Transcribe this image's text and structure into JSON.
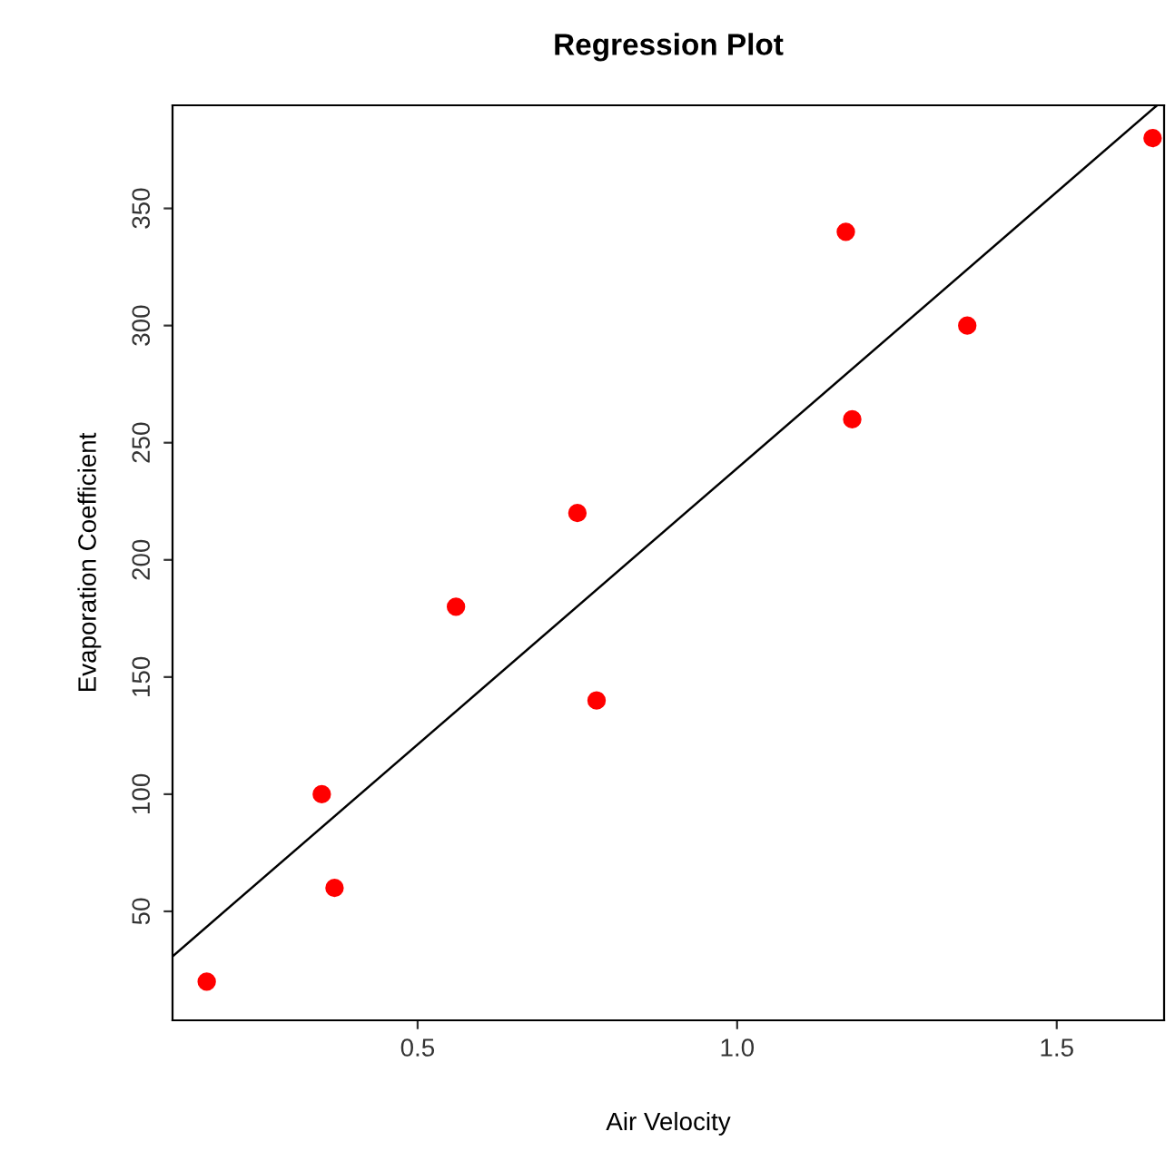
{
  "chart_data": {
    "type": "scatter",
    "title": "Regression Plot",
    "xlabel": "Air Velocity",
    "ylabel": "Evaporation Coefficient",
    "xlim": [
      0.1165,
      1.668
    ],
    "ylim": [
      3.5,
      394
    ],
    "xticks": [
      0.5,
      {
        "value": 1.0,
        "label": "1.0"
      },
      1.5
    ],
    "yticks": [
      50,
      100,
      150,
      200,
      250,
      300,
      350
    ],
    "grid": false,
    "legend": false,
    "series": [
      {
        "marker": "circle",
        "color": "#ff0000",
        "x": [
          0.17,
          0.35,
          0.37,
          0.56,
          0.75,
          0.78,
          1.17,
          1.18,
          1.36,
          1.65
        ],
        "values": [
          20,
          100,
          60,
          180,
          220,
          140,
          340,
          260,
          300,
          380
        ]
      },
      {
        "type": "line",
        "marker": "none",
        "color": "#000000",
        "line_style": "solid",
        "x": [
          0.1165,
          1.657
        ],
        "values": [
          30.8,
          394
        ]
      }
    ]
  }
}
